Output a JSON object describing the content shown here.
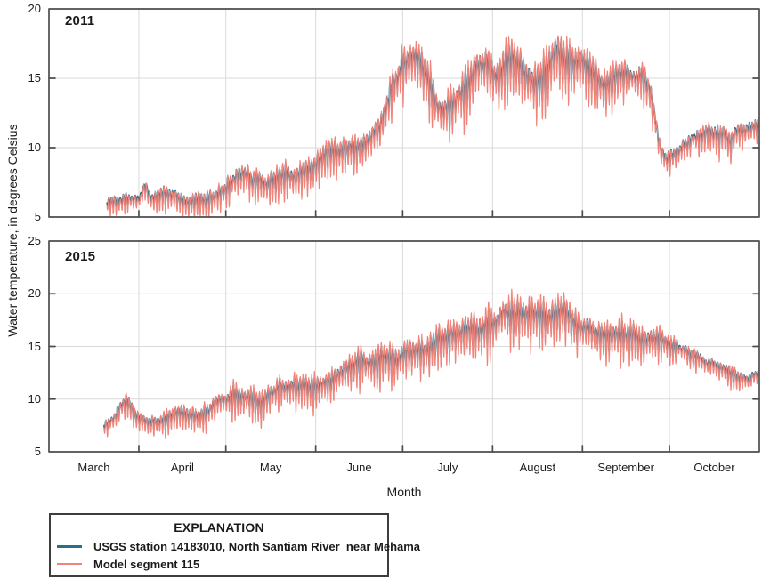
{
  "chart_data": {
    "type": "line",
    "title": "",
    "xlabel": "Month",
    "ylabel": "Water temperature, in degrees Celsius",
    "x_domain": "March 1 through October 31 (day index 0-245)",
    "months": [
      "March",
      "April",
      "May",
      "June",
      "July",
      "August",
      "September",
      "October"
    ],
    "month_boundaries_days": [
      0,
      31,
      61,
      92,
      122,
      153,
      184,
      214,
      245
    ],
    "grid": true,
    "legend": {
      "title": "EXPLANATION",
      "position": "bottom-left box",
      "entries": [
        {
          "label": "USGS station 14183010, North Santiam River  near Mehama",
          "color": "#2a6e8c"
        },
        {
          "label": "Model segment 115",
          "color": "#f0837a"
        }
      ]
    },
    "series_styles": [
      {
        "name": "usgs-station",
        "color": "#2a6e8c",
        "amp_scale": 0.62,
        "offset": 0.12,
        "line_width": 1.7,
        "seed_noise": 101
      },
      {
        "name": "model-segment-115",
        "color": "#f0837a",
        "amp_scale": 1.0,
        "offset": -0.08,
        "line_width": 1.15,
        "seed_noise": 202
      }
    ],
    "panels": [
      {
        "label": "2011",
        "ylim": [
          5,
          20
        ],
        "yticks": [
          5,
          10,
          15,
          20
        ],
        "start_day": 20,
        "seed": 11,
        "daily_mean_and_diurnal_amplitude_keyframes": [
          [
            20,
            5.7,
            0.5
          ],
          [
            26,
            5.9,
            0.6
          ],
          [
            31,
            5.9,
            0.65
          ],
          [
            33,
            6.9,
            0.9
          ],
          [
            35,
            6.0,
            0.7
          ],
          [
            40,
            6.15,
            0.8
          ],
          [
            46,
            6.0,
            0.75
          ],
          [
            52,
            6.3,
            0.8
          ],
          [
            57,
            6.35,
            0.85
          ],
          [
            61,
            6.6,
            0.9
          ],
          [
            64,
            7.6,
            1.05
          ],
          [
            67,
            8.2,
            1.1
          ],
          [
            70,
            7.3,
            1.0
          ],
          [
            75,
            7.35,
            1.0
          ],
          [
            80,
            7.9,
            1.1
          ],
          [
            85,
            8.1,
            1.1
          ],
          [
            92,
            8.5,
            1.2
          ],
          [
            97,
            9.0,
            1.25
          ],
          [
            102,
            9.4,
            1.3
          ],
          [
            107,
            9.7,
            1.35
          ],
          [
            111,
            10.2,
            1.45
          ],
          [
            114,
            10.8,
            1.5
          ],
          [
            118,
            13.5,
            1.75
          ],
          [
            122,
            15.5,
            1.85
          ],
          [
            127,
            16.0,
            1.9
          ],
          [
            131,
            14.0,
            1.7
          ],
          [
            134,
            13.0,
            1.55
          ],
          [
            137,
            12.9,
            1.55
          ],
          [
            141,
            13.6,
            1.65
          ],
          [
            144,
            14.3,
            1.75
          ],
          [
            147,
            15.8,
            1.9
          ],
          [
            151,
            16.2,
            1.9
          ],
          [
            155,
            15.3,
            1.9
          ],
          [
            159,
            15.9,
            1.95
          ],
          [
            163,
            15.5,
            1.95
          ],
          [
            167,
            14.9,
            1.9
          ],
          [
            171,
            15.7,
            1.95
          ],
          [
            175,
            16.7,
            2.0
          ],
          [
            178,
            16.1,
            1.95
          ],
          [
            181,
            15.4,
            1.85
          ],
          [
            184,
            15.2,
            1.7
          ],
          [
            188,
            14.9,
            1.6
          ],
          [
            192,
            14.6,
            1.5
          ],
          [
            196,
            15.4,
            1.45
          ],
          [
            200,
            15.5,
            1.4
          ],
          [
            204,
            15.1,
            1.3
          ],
          [
            207,
            14.2,
            1.2
          ],
          [
            209,
            12.2,
            1.0
          ],
          [
            211,
            9.7,
            0.85
          ],
          [
            213,
            9.2,
            0.8
          ],
          [
            216,
            9.6,
            0.85
          ],
          [
            220,
            10.0,
            0.9
          ],
          [
            224,
            10.4,
            0.95
          ],
          [
            228,
            10.8,
            0.95
          ],
          [
            231,
            10.4,
            1.1
          ],
          [
            233,
            10.9,
            1.0
          ],
          [
            235,
            10.1,
            1.15
          ],
          [
            237,
            11.0,
            0.95
          ],
          [
            241,
            11.3,
            0.9
          ],
          [
            245,
            11.4,
            0.9
          ]
        ]
      },
      {
        "label": "2015",
        "ylim": [
          5,
          25
        ],
        "yticks": [
          5,
          10,
          15,
          20,
          25
        ],
        "start_day": 19,
        "seed": 15,
        "daily_mean_and_diurnal_amplitude_keyframes": [
          [
            19,
            7.4,
            0.6
          ],
          [
            22,
            7.9,
            0.8
          ],
          [
            25,
            9.3,
            1.1
          ],
          [
            27,
            9.7,
            1.2
          ],
          [
            29,
            8.8,
            1.05
          ],
          [
            31,
            8.3,
            1.0
          ],
          [
            34,
            7.7,
            0.95
          ],
          [
            37,
            7.6,
            0.95
          ],
          [
            40,
            7.9,
            1.1
          ],
          [
            43,
            8.3,
            1.2
          ],
          [
            47,
            8.7,
            1.3
          ],
          [
            50,
            8.4,
            1.2
          ],
          [
            53,
            8.5,
            1.2
          ],
          [
            57,
            9.4,
            1.3
          ],
          [
            61,
            9.9,
            1.35
          ],
          [
            65,
            10.2,
            1.4
          ],
          [
            69,
            10.5,
            1.45
          ],
          [
            73,
            10.1,
            1.4
          ],
          [
            77,
            10.7,
            1.45
          ],
          [
            81,
            11.1,
            1.5
          ],
          [
            85,
            11.4,
            1.55
          ],
          [
            89,
            11.2,
            1.55
          ],
          [
            92,
            11.3,
            1.6
          ],
          [
            96,
            12.2,
            1.65
          ],
          [
            100,
            12.6,
            1.7
          ],
          [
            104,
            12.9,
            1.75
          ],
          [
            108,
            13.2,
            1.8
          ],
          [
            112,
            13.4,
            1.85
          ],
          [
            116,
            13.7,
            1.9
          ],
          [
            120,
            14.0,
            1.95
          ],
          [
            124,
            14.2,
            1.95
          ],
          [
            128,
            14.6,
            2.0
          ],
          [
            132,
            14.9,
            2.05
          ],
          [
            136,
            15.2,
            2.05
          ],
          [
            140,
            15.6,
            2.1
          ],
          [
            144,
            15.9,
            2.15
          ],
          [
            148,
            16.2,
            2.2
          ],
          [
            151,
            16.8,
            2.25
          ],
          [
            154,
            17.4,
            2.3
          ],
          [
            157,
            17.9,
            2.35
          ],
          [
            160,
            17.6,
            2.3
          ],
          [
            163,
            17.4,
            2.25
          ],
          [
            166,
            17.7,
            2.3
          ],
          [
            169,
            17.9,
            2.3
          ],
          [
            172,
            17.4,
            2.2
          ],
          [
            175,
            17.6,
            2.2
          ],
          [
            178,
            17.5,
            2.1
          ],
          [
            181,
            17.1,
            2.0
          ],
          [
            184,
            16.8,
            1.9
          ],
          [
            187,
            16.4,
            1.85
          ],
          [
            190,
            15.9,
            1.8
          ],
          [
            193,
            15.9,
            1.8
          ],
          [
            196,
            16.2,
            1.8
          ],
          [
            199,
            16.1,
            1.7
          ],
          [
            202,
            15.8,
            1.6
          ],
          [
            205,
            15.4,
            1.5
          ],
          [
            208,
            15.2,
            1.45
          ],
          [
            211,
            15.1,
            1.4
          ],
          [
            214,
            15.0,
            1.3
          ],
          [
            218,
            14.6,
            1.25
          ],
          [
            222,
            14.2,
            1.15
          ],
          [
            226,
            13.7,
            1.1
          ],
          [
            230,
            13.1,
            1.0
          ],
          [
            234,
            12.6,
            1.0
          ],
          [
            238,
            12.1,
            0.9
          ],
          [
            241,
            11.9,
            0.85
          ],
          [
            244,
            12.0,
            0.8
          ],
          [
            245,
            12.0,
            0.8
          ]
        ]
      }
    ],
    "colors": {
      "spine": "#4d4d4d",
      "grid": "#d9d9d9",
      "text": "#1a1a1a"
    }
  }
}
